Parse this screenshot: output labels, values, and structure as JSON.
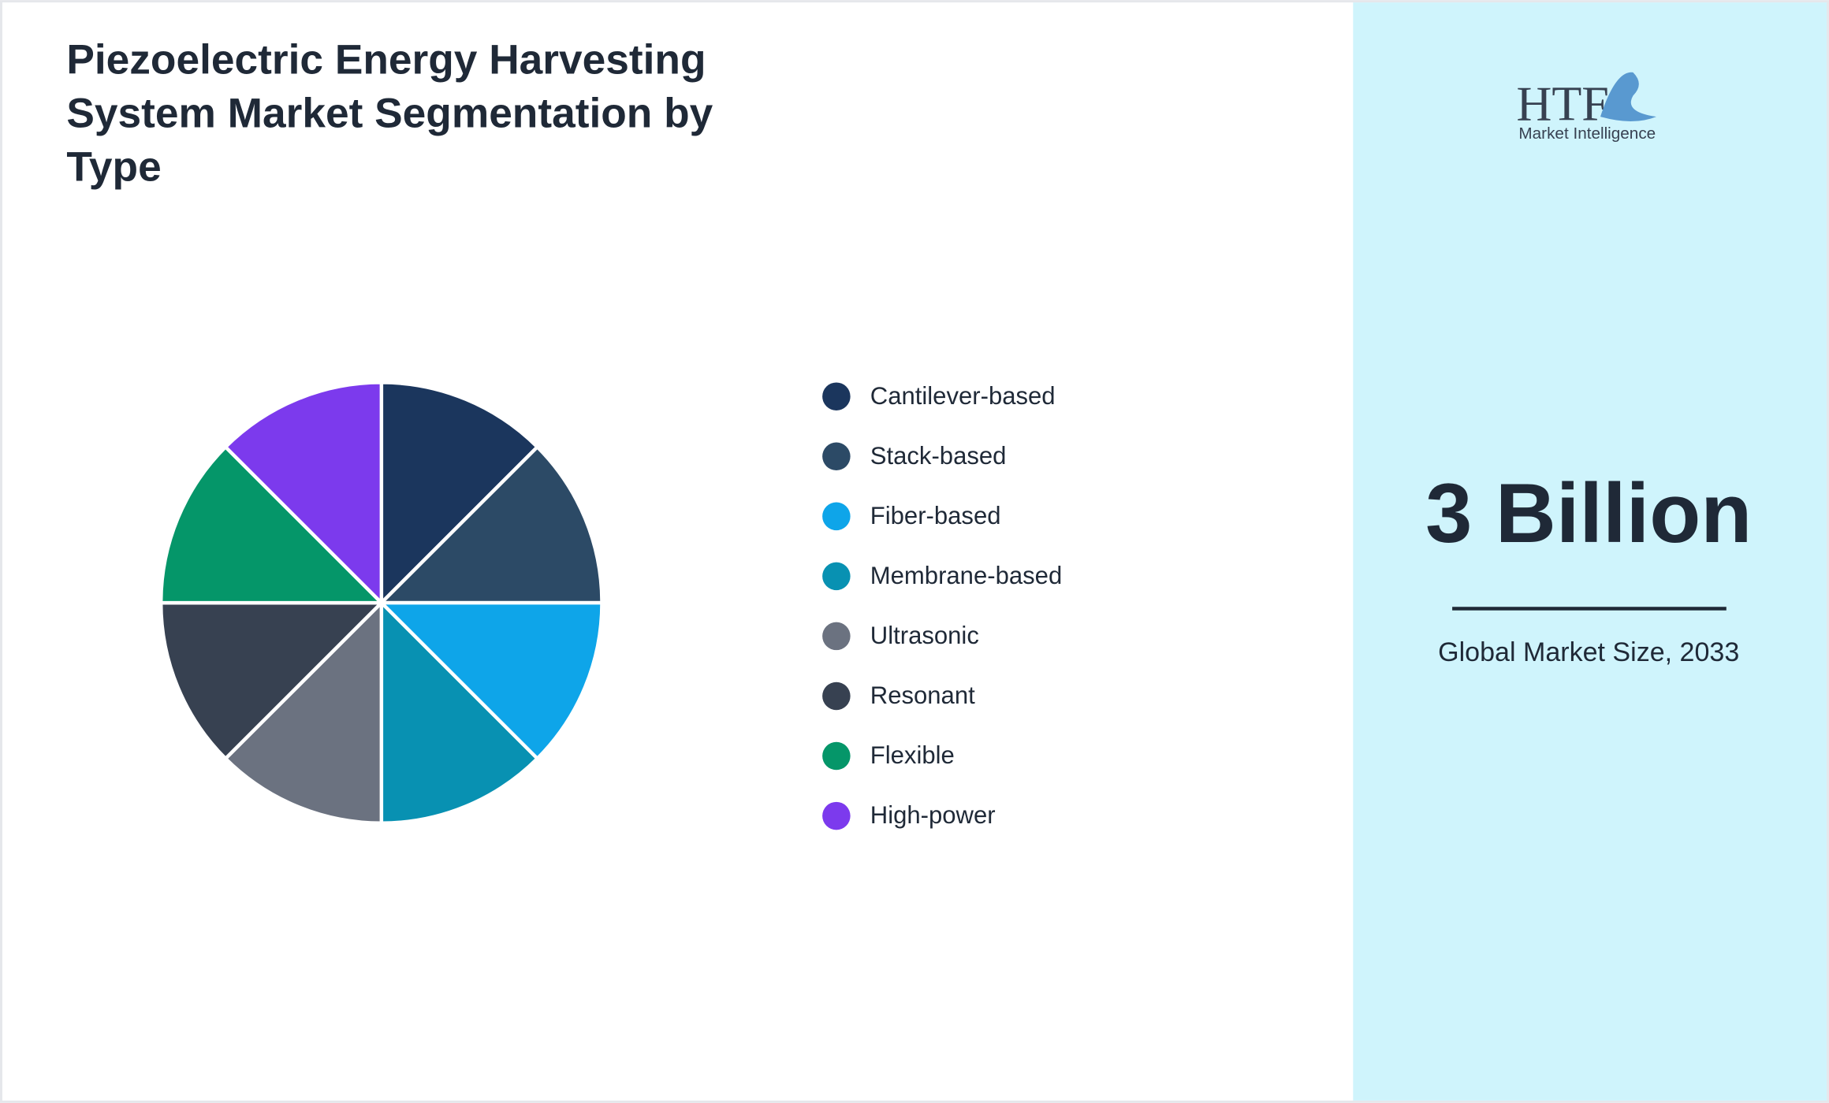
{
  "chart_data": {
    "type": "pie",
    "title": "Piezoelectric Energy Harvesting System Market Segmentation by Type",
    "categories": [
      "Cantilever-based",
      "Stack-based",
      "Fiber-based",
      "Membrane-based",
      "Ultrasonic",
      "Resonant",
      "Flexible",
      "High-power"
    ],
    "values": [
      12.5,
      12.5,
      12.5,
      12.5,
      12.5,
      12.5,
      12.5,
      12.5
    ],
    "colors": [
      "#1b365d",
      "#2c4a66",
      "#0ea5e9",
      "#0891b2",
      "#6b7280",
      "#374151",
      "#059669",
      "#7c3aed"
    ]
  },
  "stat": {
    "value": "3 Billion",
    "label": "Global Market Size, 2033"
  },
  "logo": {
    "text": "HTF",
    "subtext": "Market Intelligence"
  }
}
